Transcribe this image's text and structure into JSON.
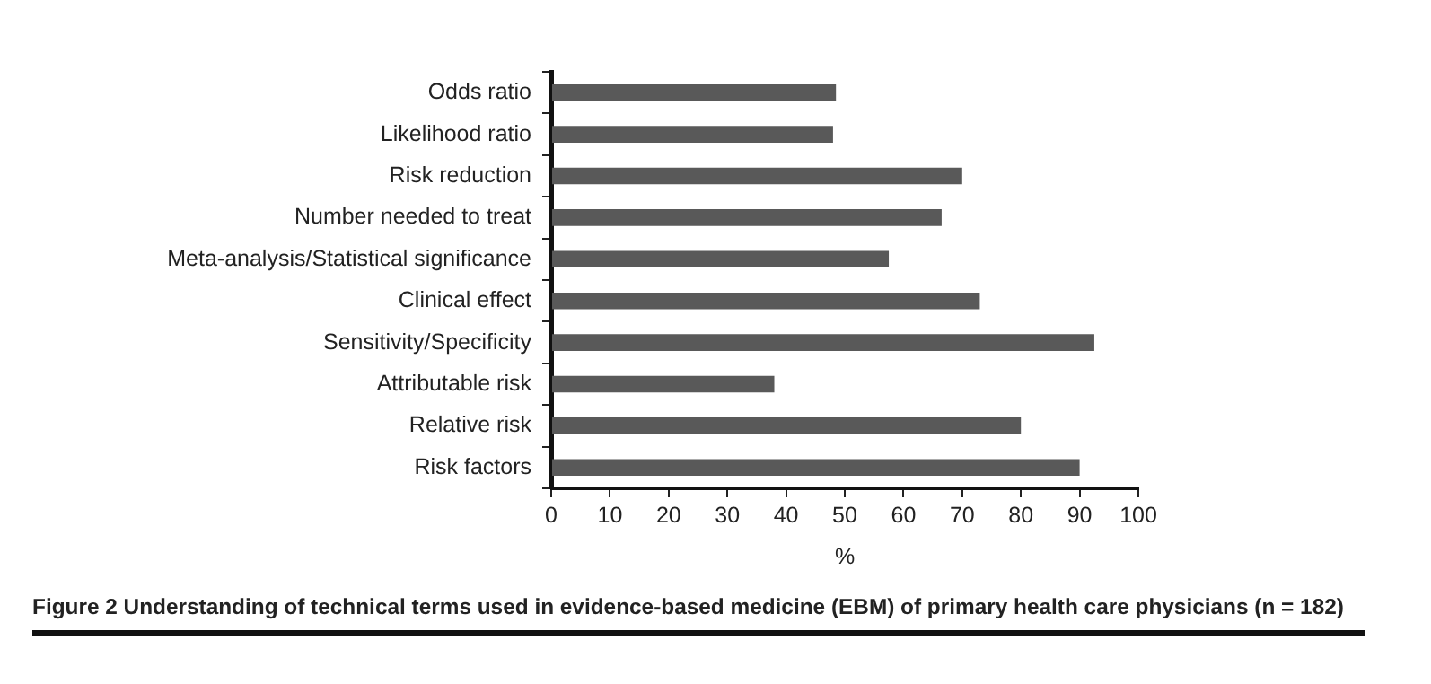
{
  "chart_data": {
    "type": "bar",
    "orientation": "horizontal",
    "title": "Figure 2 Understanding of technical terms used in evidence-based medicine (EBM) of primary health care physicians (n = 182)",
    "xlabel": "%",
    "categories": [
      "Odds ratio",
      "Likelihood ratio",
      "Risk reduction",
      "Number needed to treat",
      "Meta-analysis/Statistical significance",
      "Clinical effect",
      "Sensitivity/Specificity",
      "Attributable risk",
      "Relative risk",
      "Risk factors"
    ],
    "values": [
      48.5,
      48,
      70,
      66.5,
      57.5,
      73,
      92.5,
      38,
      80,
      90
    ],
    "color": "#595959",
    "xlim": [
      0,
      100
    ],
    "xticks": [
      0,
      10,
      20,
      30,
      40,
      50,
      60,
      70,
      80,
      90,
      100
    ],
    "grid": false,
    "legend": false
  }
}
